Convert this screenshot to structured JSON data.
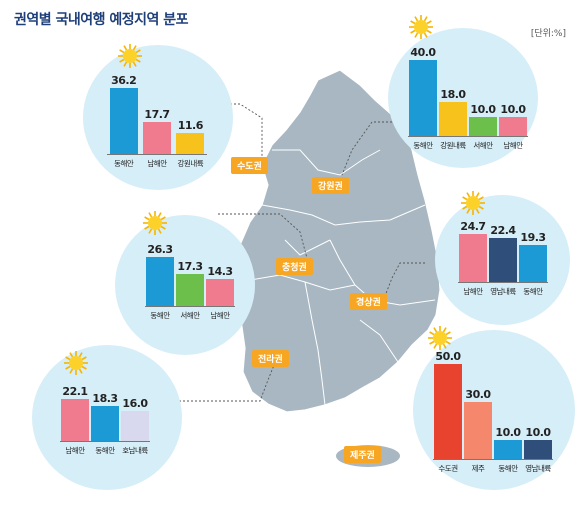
{
  "title": "권역별 국내여행 예정지역 분포",
  "unit": "[단위:%]",
  "colors": {
    "blue": "#1c9ad6",
    "pink": "#f07a8e",
    "yellow": "#f8c21c",
    "green": "#6cbf4a",
    "navy": "#2f4f7a",
    "lavender": "#d8d8ee",
    "red": "#e8432f",
    "salmon": "#f4876c",
    "bubble": "#d6eef8",
    "map": "#a8b7c2",
    "label": "#f6a623"
  },
  "chart_data": [
    {
      "type": "bar",
      "region": "수도권",
      "categories": [
        "동해안",
        "남해안",
        "강원내륙"
      ],
      "values": [
        36.2,
        17.7,
        11.6
      ],
      "ylim": [
        0,
        50
      ]
    },
    {
      "type": "bar",
      "region": "강원권",
      "categories": [
        "동해안",
        "강원내륙",
        "서해안",
        "남해안"
      ],
      "values": [
        40.0,
        18.0,
        10.0,
        10.0
      ],
      "ylim": [
        0,
        50
      ]
    },
    {
      "type": "bar",
      "region": "충청권",
      "categories": [
        "동해안",
        "서해안",
        "남해안"
      ],
      "values": [
        26.3,
        17.3,
        14.3
      ],
      "ylim": [
        0,
        50
      ]
    },
    {
      "type": "bar",
      "region": "경상권",
      "categories": [
        "남해안",
        "영남내륙",
        "동해안"
      ],
      "values": [
        24.7,
        22.4,
        19.3
      ],
      "ylim": [
        0,
        50
      ]
    },
    {
      "type": "bar",
      "region": "전라권",
      "categories": [
        "남해안",
        "동해안",
        "호남내륙"
      ],
      "values": [
        22.1,
        18.3,
        16.0
      ],
      "ylim": [
        0,
        50
      ]
    },
    {
      "type": "bar",
      "region": "제주권",
      "categories": [
        "수도권",
        "제주",
        "동해안",
        "영남내륙"
      ],
      "values": [
        50.0,
        30.0,
        10.0,
        10.0
      ],
      "ylim": [
        0,
        50
      ]
    }
  ]
}
